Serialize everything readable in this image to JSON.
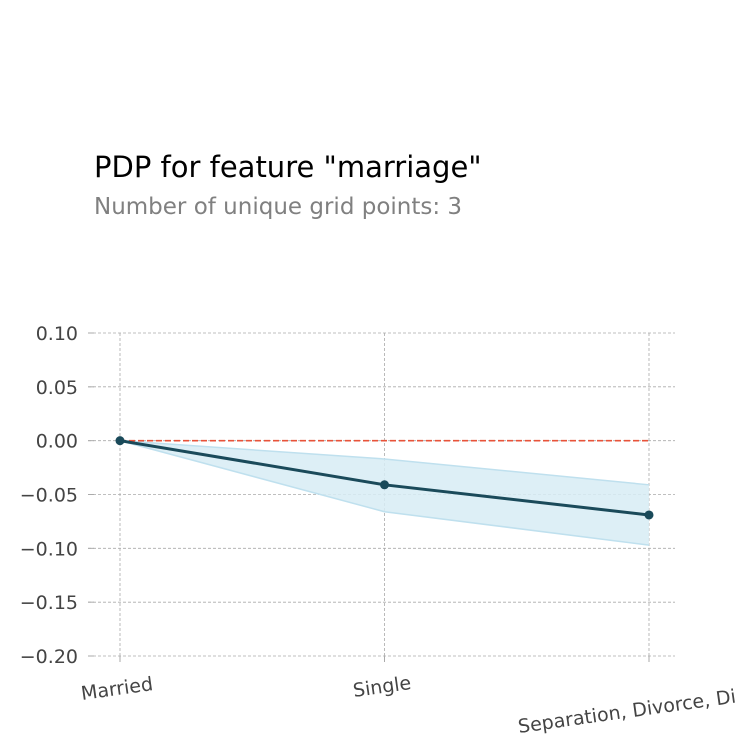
{
  "chart_data": {
    "type": "line",
    "title": "PDP for feature \"marriage\"",
    "subtitle": "Number of unique grid points: 3",
    "xlabel": "",
    "ylabel": "",
    "categories": [
      "Married",
      "Single",
      "Separation, Divorce, Di"
    ],
    "series": [
      {
        "values": [
          0.0,
          -0.041,
          -0.069
        ],
        "lower": [
          0.0,
          -0.066,
          -0.097
        ],
        "upper": [
          0.0,
          -0.017,
          -0.041
        ]
      }
    ],
    "reference_line": 0.0,
    "ylim": [
      -0.2,
      0.1
    ],
    "yticks": [
      0.1,
      0.05,
      0.0,
      -0.05,
      -0.1,
      -0.15,
      -0.2
    ],
    "ytick_labels": [
      "0.10",
      "0.05",
      "0.00",
      "−0.05",
      "−0.10",
      "−0.15",
      "−0.20"
    ],
    "grid": true,
    "colors": {
      "line": "#1a4a5a",
      "band": "#d7ecf4",
      "band_edge": "#bfe0ee",
      "reference": "#e8533a",
      "grid": "#aaaaaa"
    }
  }
}
